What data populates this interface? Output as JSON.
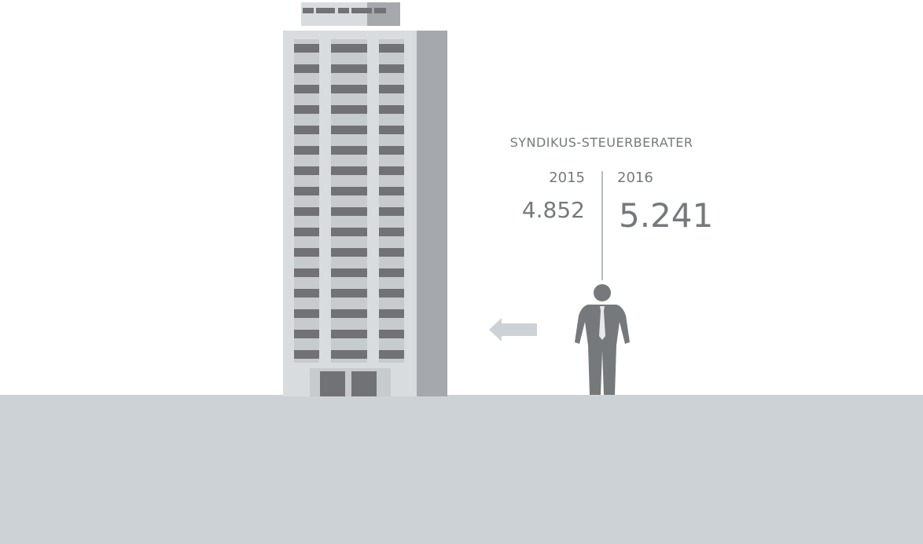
{
  "title": "SYNDIKUS-STEUERBERATER",
  "columns": [
    {
      "year": "2015",
      "value": "4.852"
    },
    {
      "year": "2016",
      "value": "5.241"
    }
  ]
}
